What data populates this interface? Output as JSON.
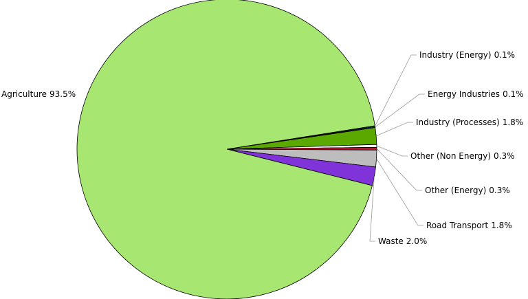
{
  "chart_data": {
    "type": "pie",
    "categories": [
      "Industry (Energy)",
      "Energy Industries",
      "Industry (Processes)",
      "Other (Non Energy)",
      "Other (Energy)",
      "Road Transport",
      "Waste",
      "Agriculture"
    ],
    "values": [
      0.1,
      0.1,
      1.8,
      0.3,
      0.3,
      1.8,
      2.0,
      93.5
    ],
    "value_labels": [
      "0.1%",
      "0.1%",
      "1.8%",
      "0.3%",
      "0.3%",
      "1.8%",
      "2.0%",
      "93.5%"
    ],
    "colors": [
      "#1f8a99",
      "#1a3d8c",
      "#5aa800",
      "#ffffff",
      "#c8102e",
      "#bdbdbd",
      "#8033d9",
      "#a8e672"
    ]
  }
}
